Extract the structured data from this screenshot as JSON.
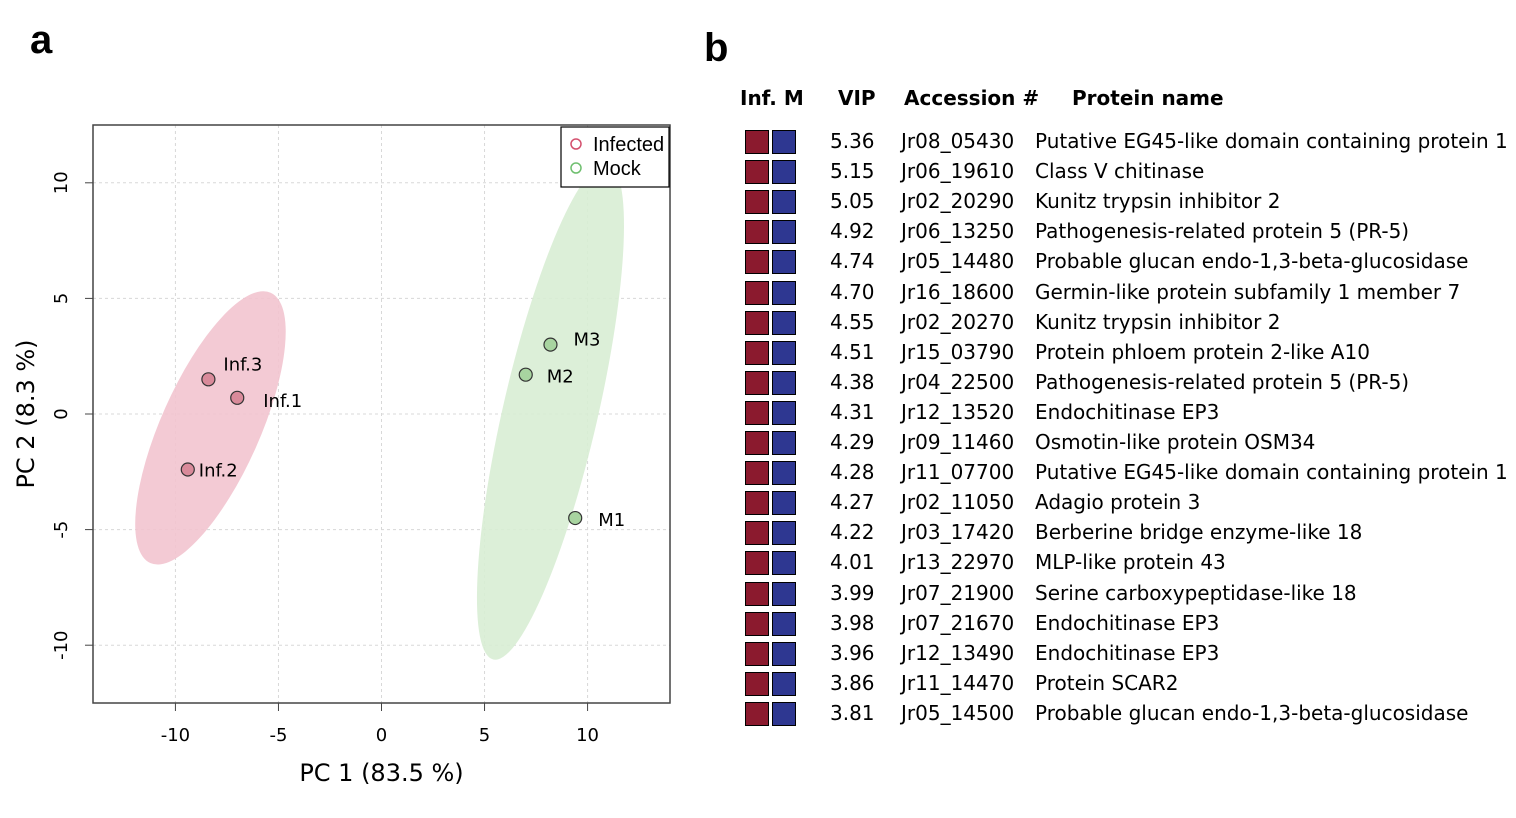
{
  "panels": {
    "a": "a",
    "b": "b"
  },
  "chart_data": [
    {
      "type": "scatter",
      "xlabel": "PC 1 (83.5 %)",
      "ylabel": "PC 2 (8.3 %)",
      "xlim": [
        -14,
        14
      ],
      "ylim": [
        -12.5,
        12.5
      ],
      "xticks": [
        -10,
        -5,
        0,
        5,
        10
      ],
      "xtick_labels": [
        "-10",
        "-5",
        "0",
        "5",
        "10"
      ],
      "yticks": [
        -10,
        -5,
        0,
        5,
        10
      ],
      "ytick_labels": [
        "-10",
        "-5",
        "0",
        "5",
        "10"
      ],
      "grid": true,
      "legend_position": "top-right",
      "series": [
        {
          "name": "Infected",
          "color": "#d4506e",
          "fill": "#d98a9a",
          "ellipse_color": "#f2c4cf",
          "points": [
            {
              "label": "Inf.1",
              "x": -7.0,
              "y": 0.7
            },
            {
              "label": "Inf.2",
              "x": -9.4,
              "y": -2.4
            },
            {
              "label": "Inf.3",
              "x": -8.4,
              "y": 1.5
            }
          ],
          "ellipse": {
            "cx": -8.3,
            "cy": -0.6,
            "rx": 2.4,
            "ry": 6.4,
            "angle_deg": 24
          }
        },
        {
          "name": "Mock",
          "color": "#6fbf6f",
          "fill": "#a8d4a0",
          "ellipse_color": "#d8edd4",
          "points": [
            {
              "label": "M1",
              "x": 9.4,
              "y": -4.5
            },
            {
              "label": "M2",
              "x": 7.0,
              "y": 1.7
            },
            {
              "label": "M3",
              "x": 8.2,
              "y": 3.0
            }
          ],
          "ellipse": {
            "cx": 8.2,
            "cy": 0.1,
            "rx": 2.3,
            "ry": 11.0,
            "angle_deg": 13
          }
        }
      ]
    },
    {
      "type": "table",
      "columns": [
        "Inf. M",
        "VIP",
        "Accession #",
        "Protein name"
      ],
      "square_colors": {
        "infected": "#8b1a2e",
        "mock": "#2e3791"
      },
      "rows": [
        {
          "vip": "5.36",
          "accession": "Jr08_05430",
          "name": "Putative EG45-like domain containing protein 1"
        },
        {
          "vip": "5.15",
          "accession": "Jr06_19610",
          "name": "Class V chitinase"
        },
        {
          "vip": "5.05",
          "accession": "Jr02_20290",
          "name": "Kunitz trypsin inhibitor 2"
        },
        {
          "vip": "4.92",
          "accession": "Jr06_13250",
          "name": "Pathogenesis-related protein 5 (PR-5)"
        },
        {
          "vip": "4.74",
          "accession": "Jr05_14480",
          "name": "Probable glucan endo-1,3-beta-glucosidase"
        },
        {
          "vip": "4.70",
          "accession": "Jr16_18600",
          "name": "Germin-like protein subfamily 1 member 7"
        },
        {
          "vip": "4.55",
          "accession": "Jr02_20270",
          "name": "Kunitz trypsin inhibitor 2"
        },
        {
          "vip": "4.51",
          "accession": "Jr15_03790",
          "name": "Protein phloem protein 2-like A10"
        },
        {
          "vip": "4.38",
          "accession": "Jr04_22500",
          "name": "Pathogenesis-related protein 5 (PR-5)"
        },
        {
          "vip": "4.31",
          "accession": "Jr12_13520",
          "name": "Endochitinase EP3"
        },
        {
          "vip": "4.29",
          "accession": "Jr09_11460",
          "name": "Osmotin-like protein OSM34"
        },
        {
          "vip": "4.28",
          "accession": "Jr11_07700",
          "name": "Putative EG45-like domain containing protein 1"
        },
        {
          "vip": "4.27",
          "accession": "Jr02_11050",
          "name": "Adagio protein 3"
        },
        {
          "vip": "4.22",
          "accession": "Jr03_17420",
          "name": "Berberine bridge enzyme-like 18"
        },
        {
          "vip": "4.01",
          "accession": "Jr13_22970",
          "name": "MLP-like protein 43"
        },
        {
          "vip": "3.99",
          "accession": "Jr07_21900",
          "name": "Serine carboxypeptidase-like 18"
        },
        {
          "vip": "3.98",
          "accession": "Jr07_21670",
          "name": "Endochitinase EP3"
        },
        {
          "vip": "3.96",
          "accession": "Jr12_13490",
          "name": "Endochitinase EP3"
        },
        {
          "vip": "3.86",
          "accession": "Jr11_14470",
          "name": "Protein SCAR2"
        },
        {
          "vip": "3.81",
          "accession": "Jr05_14500",
          "name": "Probable glucan endo-1,3-beta-glucosidase"
        }
      ]
    }
  ]
}
